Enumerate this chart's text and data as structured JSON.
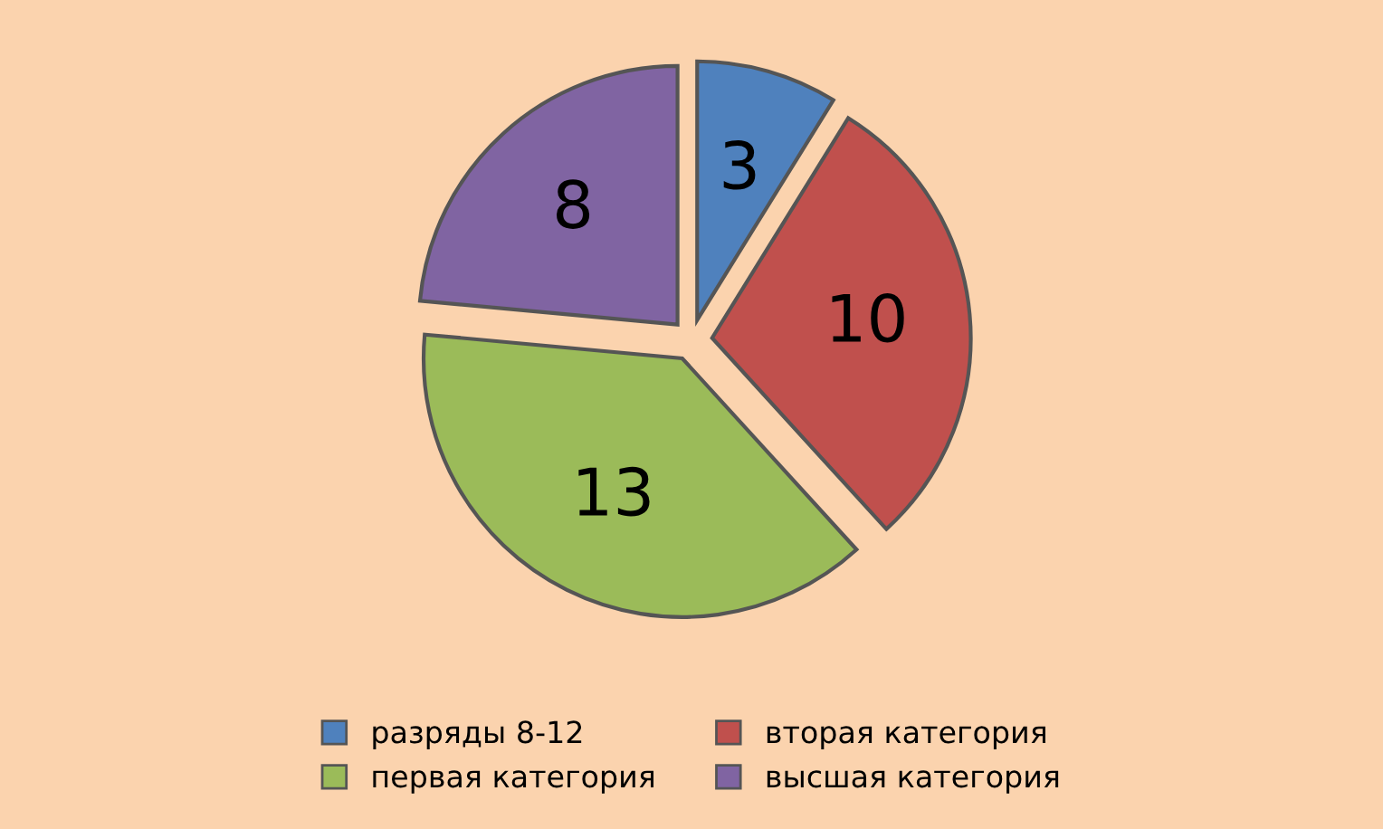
{
  "chart_data": {
    "type": "pie",
    "categories": [
      "разряды 8-12",
      "вторая категория",
      "первая категория",
      "высшая категория"
    ],
    "values": [
      3,
      10,
      13,
      8
    ],
    "colors": [
      "#4f81bd",
      "#c0504d",
      "#9bbb59",
      "#8064a2"
    ],
    "data_labels": true,
    "legend": "bottom"
  }
}
